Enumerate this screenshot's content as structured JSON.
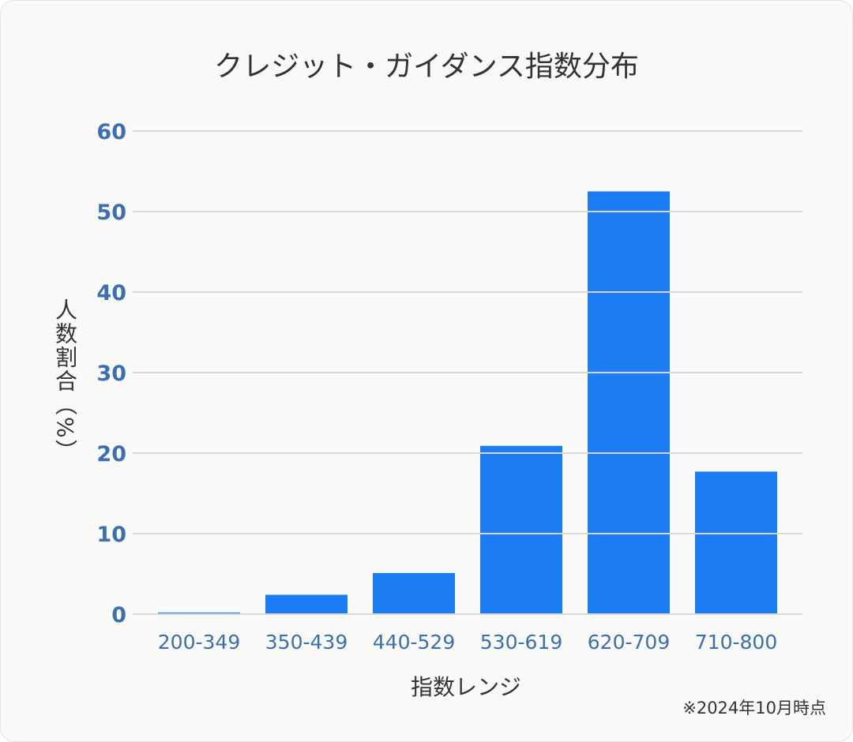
{
  "chart_data": {
    "type": "bar",
    "title": "クレジット・ガイダンス指数分布",
    "xlabel": "指数レンジ",
    "ylabel": "人数割合（%）",
    "note": "※2024年10月時点",
    "categories": [
      "200-349",
      "350-439",
      "440-529",
      "530-619",
      "620-709",
      "710-800"
    ],
    "values": [
      0.2,
      2.4,
      5.1,
      20.9,
      52.5,
      17.7
    ],
    "ylim": [
      0,
      60
    ],
    "yticks": [
      "0",
      "10",
      "20",
      "30",
      "40",
      "50",
      "60"
    ],
    "grid": true,
    "colors": {
      "bar": "#1c7cf4",
      "tick": "#3a6fb0",
      "grid": "#d8d8d6"
    }
  }
}
